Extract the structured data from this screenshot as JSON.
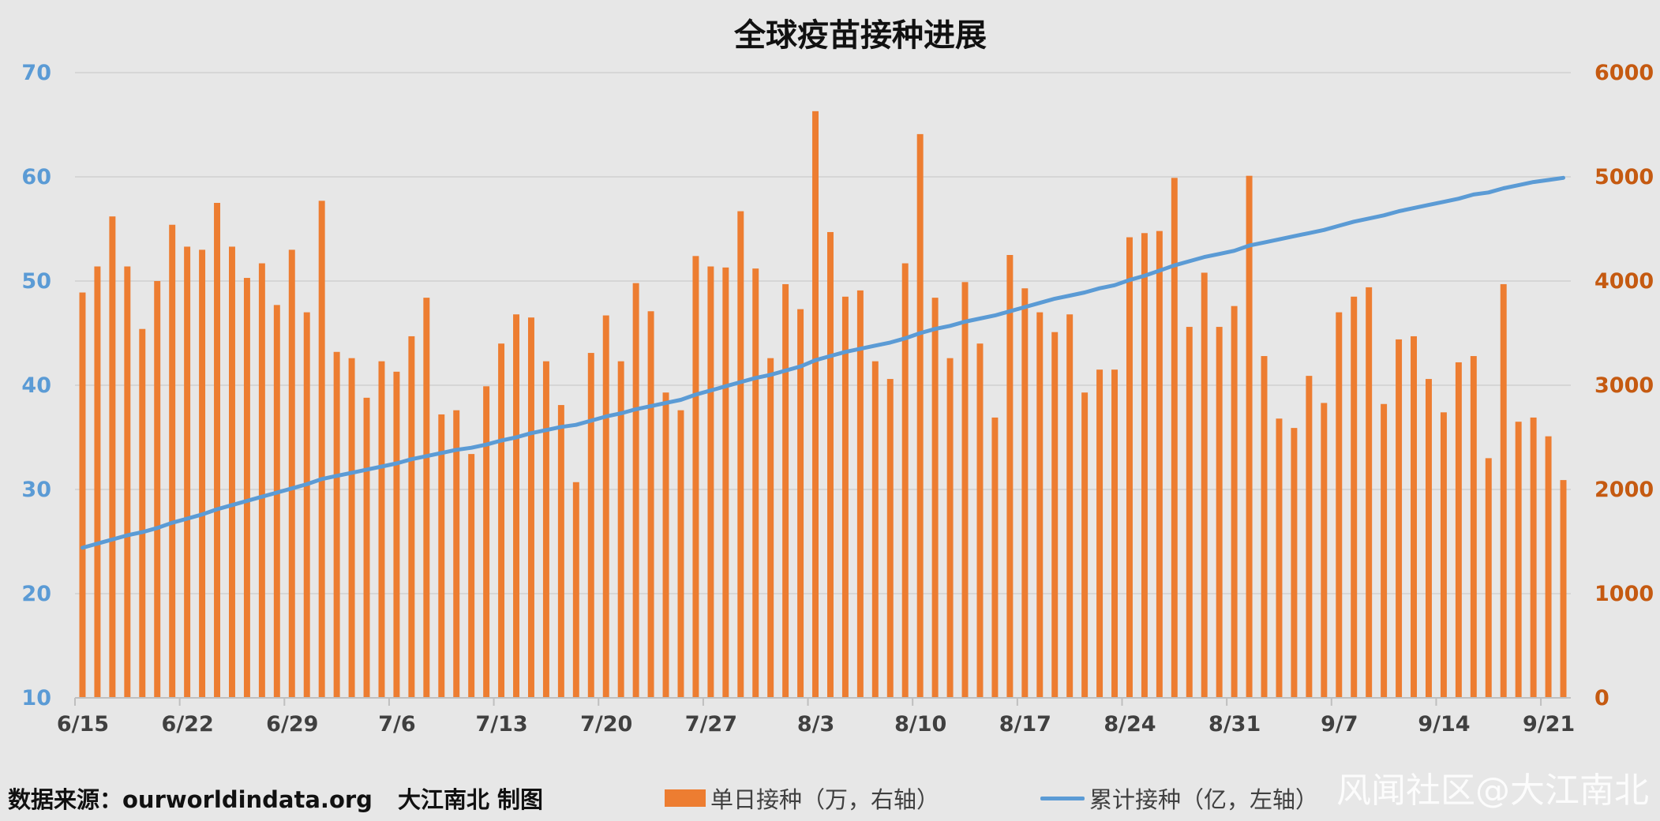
{
  "footer": {
    "source": "数据来源：ourworldindata.org",
    "author": "大江南北 制图"
  },
  "watermark": "风闻社区@大江南北",
  "chart_data": {
    "type": "bar+line",
    "title": "全球疫苗接种进展",
    "y_left": {
      "ylim": [
        10,
        70
      ],
      "ticks": [
        10,
        20,
        30,
        40,
        50,
        60,
        70
      ],
      "color": "#5b9bd5"
    },
    "y_right": {
      "ylim": [
        0,
        6000
      ],
      "ticks": [
        0,
        1000,
        2000,
        3000,
        4000,
        5000,
        6000
      ],
      "color": "#c55a11"
    },
    "x_tick_labels": [
      "6/15",
      "6/22",
      "6/29",
      "7/6",
      "7/13",
      "7/20",
      "7/27",
      "8/3",
      "8/10",
      "8/17",
      "8/24",
      "8/31",
      "9/7",
      "9/14",
      "9/21"
    ],
    "x_start": "6/15",
    "x_end": "9/22",
    "grid": "horizontal",
    "legend_position": "bottom",
    "series": [
      {
        "name": "单日接种（万，右轴）",
        "type": "bar",
        "axis": "right",
        "color": "#ed7d31",
        "values": [
          3890,
          4140,
          4620,
          4140,
          3540,
          4000,
          4540,
          4330,
          4300,
          4750,
          4330,
          4030,
          4170,
          3770,
          4300,
          3700,
          4770,
          3320,
          3260,
          2880,
          3230,
          3130,
          3470,
          3840,
          2720,
          2760,
          2340,
          2990,
          3400,
          3680,
          3650,
          3230,
          2810,
          2070,
          3310,
          3670,
          3230,
          3980,
          3710,
          2930,
          2760,
          4240,
          4140,
          4130,
          4670,
          4120,
          3260,
          3970,
          3730,
          5630,
          4470,
          3850,
          3910,
          3230,
          3060,
          4170,
          5410,
          3840,
          3260,
          3990,
          3400,
          2690,
          4250,
          3930,
          3700,
          3510,
          3680,
          2930,
          3150,
          3150,
          4420,
          4460,
          4480,
          4990,
          3560,
          4080,
          3560,
          3760,
          5010,
          3280,
          2680,
          2590,
          3090,
          2830,
          3700,
          3850,
          3940,
          2820,
          3440,
          3470,
          3060,
          2740,
          3220,
          3280,
          2300,
          3970,
          2650,
          2690,
          2510,
          2090
        ]
      },
      {
        "name": "累计接种（亿，左轴）",
        "type": "line",
        "axis": "left",
        "color": "#5b9bd5",
        "values": [
          24.4,
          24.8,
          25.2,
          25.6,
          25.9,
          26.3,
          26.8,
          27.2,
          27.6,
          28.1,
          28.5,
          28.9,
          29.3,
          29.7,
          30.1,
          30.5,
          31.0,
          31.3,
          31.6,
          31.9,
          32.2,
          32.5,
          32.9,
          33.2,
          33.5,
          33.8,
          34.0,
          34.3,
          34.7,
          35.0,
          35.4,
          35.7,
          36.0,
          36.2,
          36.6,
          37.0,
          37.3,
          37.7,
          38.0,
          38.3,
          38.6,
          39.1,
          39.5,
          39.9,
          40.3,
          40.7,
          41.0,
          41.4,
          41.8,
          42.4,
          42.8,
          43.2,
          43.5,
          43.8,
          44.1,
          44.5,
          45.0,
          45.4,
          45.7,
          46.1,
          46.4,
          46.7,
          47.1,
          47.5,
          47.9,
          48.3,
          48.6,
          48.9,
          49.3,
          49.6,
          50.1,
          50.5,
          51.0,
          51.5,
          51.9,
          52.3,
          52.6,
          52.9,
          53.4,
          53.7,
          54.0,
          54.3,
          54.6,
          54.9,
          55.3,
          55.7,
          56.0,
          56.3,
          56.7,
          57.0,
          57.3,
          57.6,
          57.9,
          58.3,
          58.5,
          58.9,
          59.2,
          59.5,
          59.7,
          59.9
        ]
      }
    ]
  }
}
